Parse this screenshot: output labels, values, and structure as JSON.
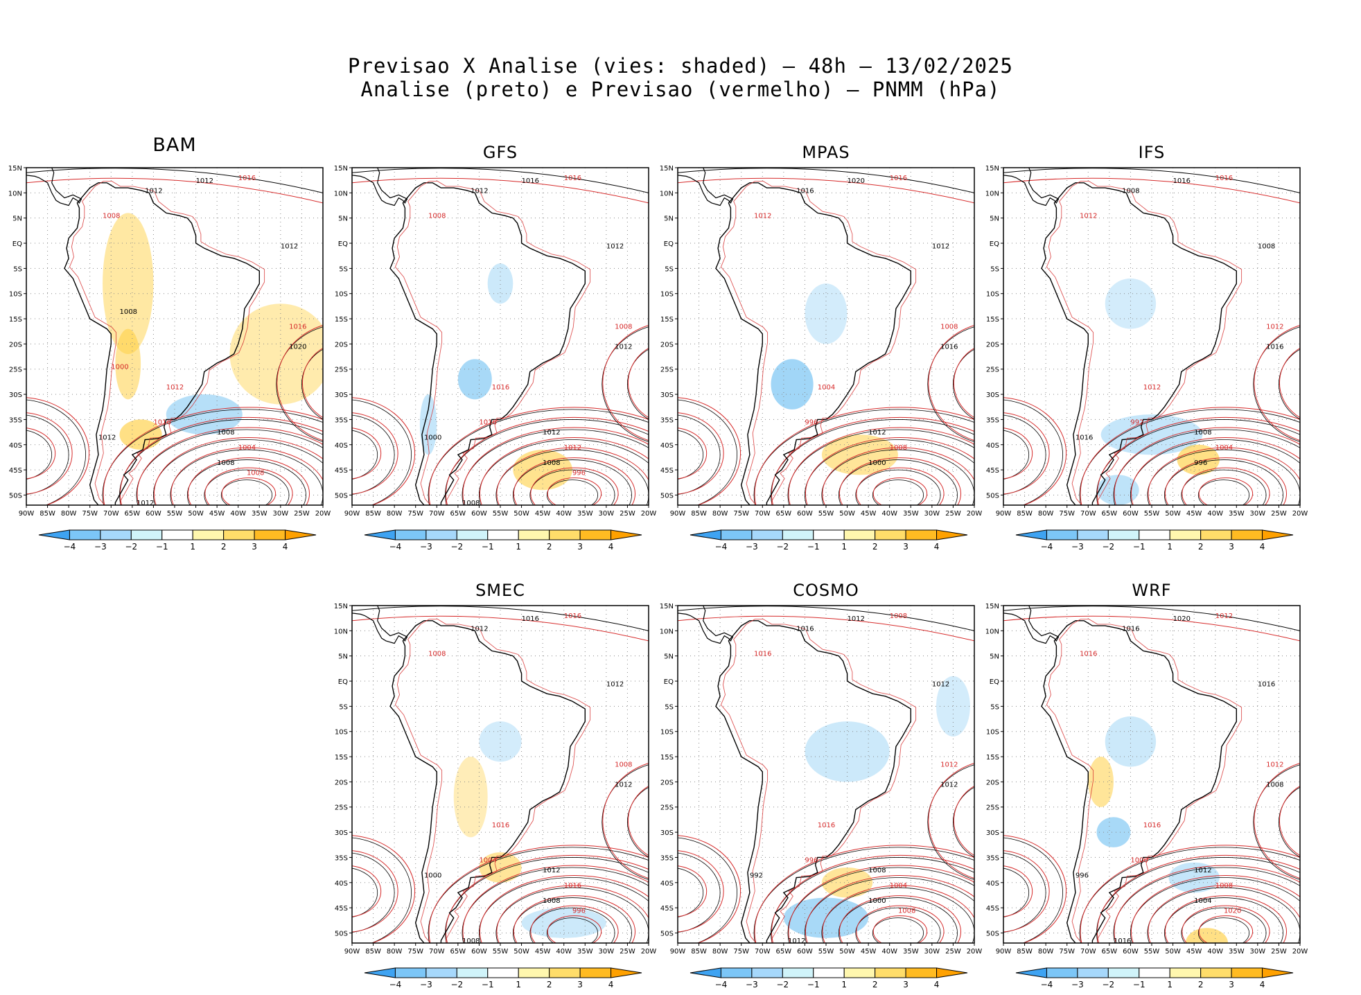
{
  "figure": {
    "title_line1": "Previsao X Analise (vies: shaded) — 48h — 13/02/2025",
    "title_line2": "Analise (preto) e Previsao (vermelho) — PNMM (hPa)"
  },
  "panels": [
    {
      "id": "bam",
      "title": "BAM",
      "labels": [
        "1012",
        "1016",
        "1012",
        "1008",
        "1012",
        "1016",
        "1020",
        "1012",
        "1008",
        "1004",
        "1008",
        "1016",
        "1012",
        "1008",
        "1012",
        "1000",
        "1008"
      ]
    },
    {
      "id": "gfs",
      "title": "GFS",
      "labels": [
        "1016",
        "1016",
        "1012",
        "1008",
        "1012",
        "1008",
        "1012",
        "1016",
        "1012",
        "1012",
        "1008",
        "1016",
        "1000",
        "996",
        "1008"
      ]
    },
    {
      "id": "mpas",
      "title": "MPAS",
      "labels": [
        "1020",
        "1016",
        "1016",
        "1012",
        "1012",
        "1008",
        "1016",
        "1004",
        "1012",
        "1008",
        "1000",
        "996"
      ]
    },
    {
      "id": "ifs",
      "title": "IFS",
      "labels": [
        "1016",
        "1016",
        "1008",
        "1012",
        "1008",
        "1012",
        "1016",
        "1012",
        "1008",
        "1004",
        "996",
        "992",
        "1016"
      ]
    },
    {
      "id": "smec",
      "title": "SMEC",
      "labels": [
        "1016",
        "1016",
        "1012",
        "1008",
        "1012",
        "1008",
        "1012",
        "1016",
        "1012",
        "1016",
        "1008",
        "1004",
        "1000",
        "996",
        "1008"
      ]
    },
    {
      "id": "cosmo",
      "title": "COSMO",
      "labels": [
        "1012",
        "1008",
        "1016",
        "1016",
        "1012",
        "1012",
        "1012",
        "1016",
        "1008",
        "1004",
        "1000",
        "996",
        "992",
        "1008",
        "1012"
      ]
    },
    {
      "id": "wrf",
      "title": "WRF",
      "labels": [
        "1020",
        "1012",
        "1016",
        "1016",
        "1016",
        "1012",
        "1008",
        "1016",
        "1012",
        "1008",
        "1004",
        "1000",
        "996",
        "1020",
        "1016"
      ]
    }
  ],
  "axes": {
    "lat_ticks": [
      "15N",
      "10N",
      "5N",
      "EQ",
      "5S",
      "10S",
      "15S",
      "20S",
      "25S",
      "30S",
      "35S",
      "40S",
      "45S",
      "50S"
    ],
    "lon_ticks": [
      "90W",
      "85W",
      "80W",
      "75W",
      "70W",
      "65W",
      "60W",
      "55W",
      "50W",
      "45W",
      "40W",
      "35W",
      "30W",
      "25W",
      "20W"
    ]
  },
  "colorbar": {
    "labels": [
      "−4",
      "−3",
      "−2",
      "−1",
      "1",
      "2",
      "3",
      "4"
    ],
    "colors": [
      "#3ea3f2",
      "#7cc6f7",
      "#a6d8fb",
      "#d0f4fa",
      "#ffffff",
      "#fff7ae",
      "#ffdd6a",
      "#ffbb22",
      "#ffa100"
    ]
  },
  "styles": {
    "analysis_color": "#000000",
    "forecast_color": "#d62a2a",
    "neg_color": "#6ec0f2",
    "pos_color": "#ffcc33",
    "land_outline": "#000000",
    "grid_color": "#888888"
  }
}
